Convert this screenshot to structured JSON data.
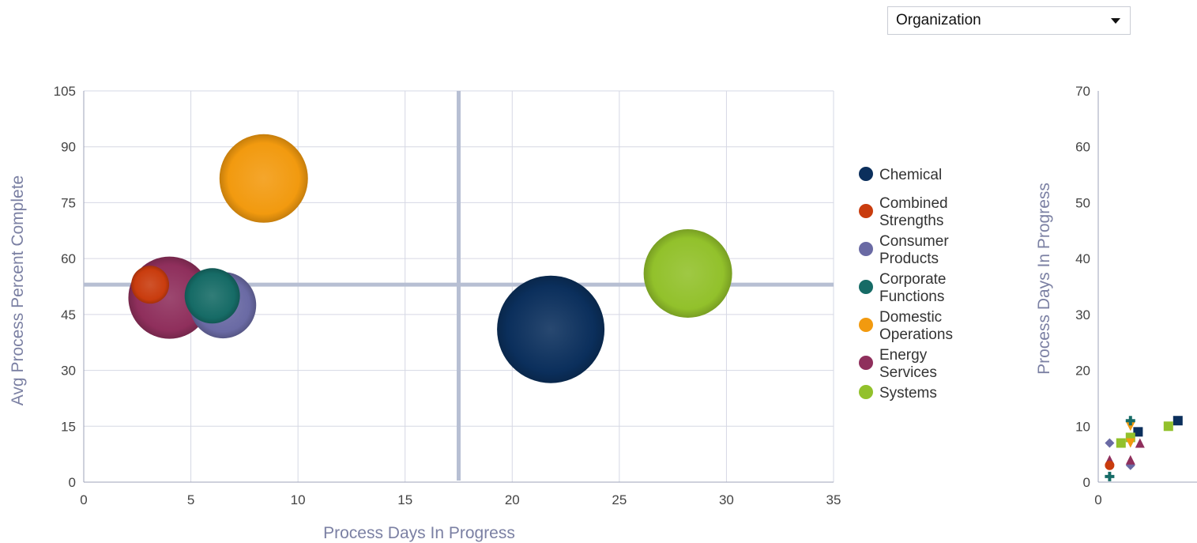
{
  "filter": {
    "selected": "Organization"
  },
  "chart_data": [
    {
      "type": "bubble",
      "xlabel": "Process Days In Progress",
      "ylabel": "Avg Process Percent Complete",
      "xlim": [
        0,
        35
      ],
      "ylim": [
        0,
        105
      ],
      "xticks": [
        0,
        5,
        10,
        15,
        20,
        25,
        30,
        35
      ],
      "yticks": [
        0,
        15,
        30,
        45,
        60,
        75,
        90,
        105
      ],
      "grid": true,
      "reference_lines": {
        "x": 17.5,
        "y": 53
      },
      "legend_position": "right",
      "series": [
        {
          "name": "Chemical",
          "color": "#0b2f5c",
          "x": 21.8,
          "y": 41,
          "size": 68
        },
        {
          "name": "Combined Strengths",
          "color": "#c93c0e",
          "x": 3.1,
          "y": 53,
          "size": 24
        },
        {
          "name": "Consumer Products",
          "color": "#6a6aa4",
          "x": 6.5,
          "y": 47.5,
          "size": 42
        },
        {
          "name": "Corporate Functions",
          "color": "#166b66",
          "x": 6.0,
          "y": 50,
          "size": 35
        },
        {
          "name": "Domestic Operations",
          "color": "#f29a0f",
          "x": 8.4,
          "y": 81.5,
          "size": 56
        },
        {
          "name": "Energy Services",
          "color": "#8f2f5c",
          "x": 4.0,
          "y": 49.5,
          "size": 52
        },
        {
          "name": "Systems",
          "color": "#92c12b",
          "x": 28.2,
          "y": 56,
          "size": 56
        }
      ],
      "legend": [
        {
          "label": [
            "Chemical"
          ],
          "color": "#0b2f5c"
        },
        {
          "label": [
            "Combined",
            "Strengths"
          ],
          "color": "#c93c0e"
        },
        {
          "label": [
            "Consumer",
            "Products"
          ],
          "color": "#6a6aa4"
        },
        {
          "label": [
            "Corporate",
            "Functions"
          ],
          "color": "#166b66"
        },
        {
          "label": [
            "Domestic",
            "Operations"
          ],
          "color": "#f29a0f"
        },
        {
          "label": [
            "Energy",
            "Services"
          ],
          "color": "#8f2f5c"
        },
        {
          "label": [
            "Systems"
          ],
          "color": "#92c12b"
        }
      ]
    },
    {
      "type": "scatter",
      "xlabel": "",
      "ylabel": "Process Days In Progress",
      "xlim": [
        0,
        5
      ],
      "ylim": [
        0,
        70
      ],
      "xticks": [
        0
      ],
      "yticks": [
        0,
        10,
        20,
        30,
        40,
        50,
        60,
        70
      ],
      "grid": false,
      "points": [
        {
          "series": "Chemical",
          "marker": "square",
          "color": "#0b2f5c",
          "x": 4.2,
          "y": 11
        },
        {
          "series": "Chemical",
          "marker": "square",
          "color": "#0b2f5c",
          "x": 2.1,
          "y": 9
        },
        {
          "series": "Systems",
          "marker": "square",
          "color": "#92c12b",
          "x": 3.7,
          "y": 10
        },
        {
          "series": "Systems",
          "marker": "square",
          "color": "#92c12b",
          "x": 1.2,
          "y": 7
        },
        {
          "series": "Systems",
          "marker": "square",
          "color": "#92c12b",
          "x": 1.7,
          "y": 8
        },
        {
          "series": "Consumer Products",
          "marker": "diamond",
          "color": "#6a6aa4",
          "x": 0.6,
          "y": 7
        },
        {
          "series": "Consumer Products",
          "marker": "diamond",
          "color": "#6a6aa4",
          "x": 1.7,
          "y": 3
        },
        {
          "series": "Domestic Operations",
          "marker": "triangle-down",
          "color": "#f29a0f",
          "x": 1.7,
          "y": 10
        },
        {
          "series": "Domestic Operations",
          "marker": "triangle-down",
          "color": "#f29a0f",
          "x": 1.7,
          "y": 7
        },
        {
          "series": "Corporate Functions",
          "marker": "plus",
          "color": "#166b66",
          "x": 1.7,
          "y": 11
        },
        {
          "series": "Corporate Functions",
          "marker": "plus",
          "color": "#166b66",
          "x": 0.6,
          "y": 1
        },
        {
          "series": "Energy Services",
          "marker": "triangle-up",
          "color": "#8f2f5c",
          "x": 0.6,
          "y": 4
        },
        {
          "series": "Energy Services",
          "marker": "triangle-up",
          "color": "#8f2f5c",
          "x": 1.7,
          "y": 4
        },
        {
          "series": "Energy Services",
          "marker": "triangle-up",
          "color": "#8f2f5c",
          "x": 2.2,
          "y": 7
        },
        {
          "series": "Combined Strengths",
          "marker": "circle",
          "color": "#c93c0e",
          "x": 0.6,
          "y": 3
        }
      ]
    }
  ]
}
